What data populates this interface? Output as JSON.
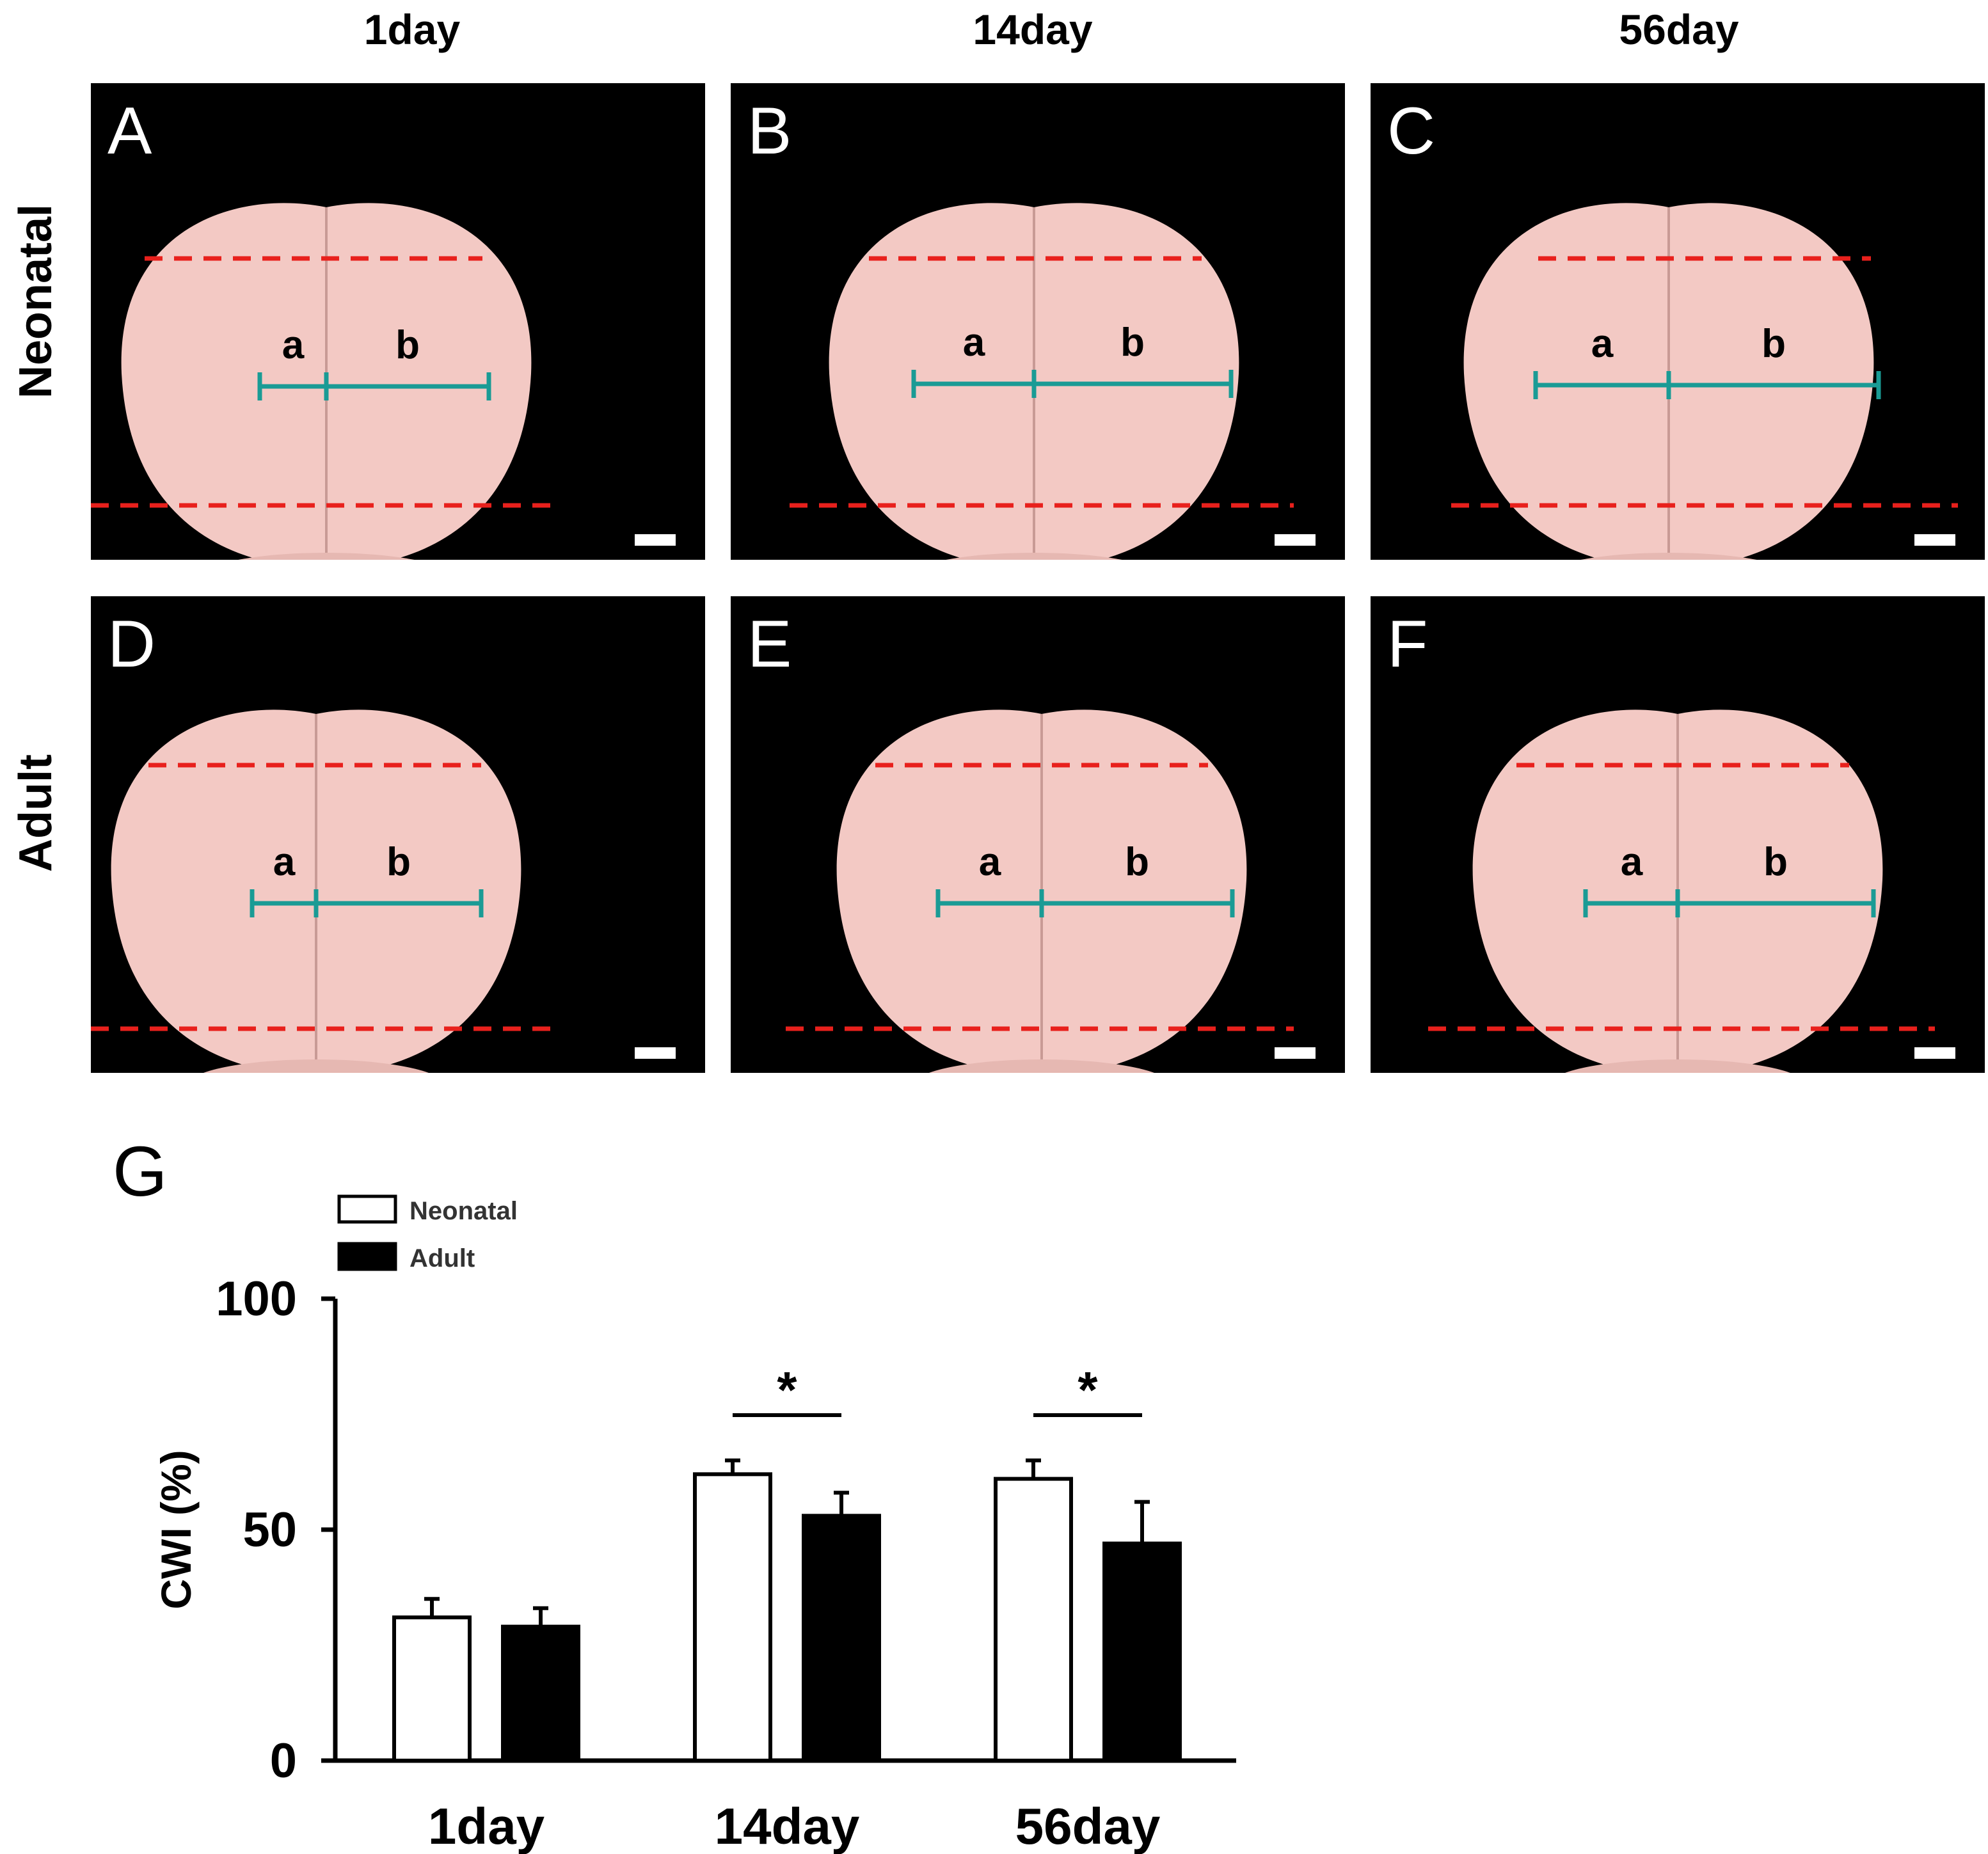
{
  "columns": [
    "1day",
    "14day",
    "56day"
  ],
  "rows": [
    "Neonatal",
    "Adult"
  ],
  "panels": [
    {
      "letter": "A",
      "label_a": "a",
      "label_b": "b"
    },
    {
      "letter": "B",
      "label_a": "a",
      "label_b": "b"
    },
    {
      "letter": "C",
      "label_a": "a",
      "label_b": "b"
    },
    {
      "letter": "D",
      "label_a": "a",
      "label_b": "b"
    },
    {
      "letter": "E",
      "label_a": "a",
      "label_b": "b"
    },
    {
      "letter": "F",
      "label_a": "a",
      "label_b": "b"
    }
  ],
  "colors": {
    "dashed_line": "#e8201c",
    "measure_line": "#1a9b95",
    "tissue": "#f3c9c4",
    "background": "#000000"
  },
  "chart_panel_letter": "G",
  "chart_data": {
    "type": "bar",
    "categories": [
      "1day",
      "14day",
      "56day"
    ],
    "series": [
      {
        "name": "Neonatal",
        "color": "#ffffff",
        "values": [
          31,
          62,
          61
        ],
        "errors": [
          4,
          3,
          4
        ]
      },
      {
        "name": "Adult",
        "color": "#000000",
        "values": [
          29,
          53,
          47
        ],
        "errors": [
          4,
          5,
          9
        ]
      }
    ],
    "ylabel": "CWI (%)",
    "xlabel": "",
    "ylim": [
      0,
      100
    ],
    "yticks": [
      0,
      50,
      100
    ],
    "significance": [
      {
        "category": "14day",
        "label": "*"
      },
      {
        "category": "56day",
        "label": "*"
      }
    ],
    "legend": "top-left"
  }
}
